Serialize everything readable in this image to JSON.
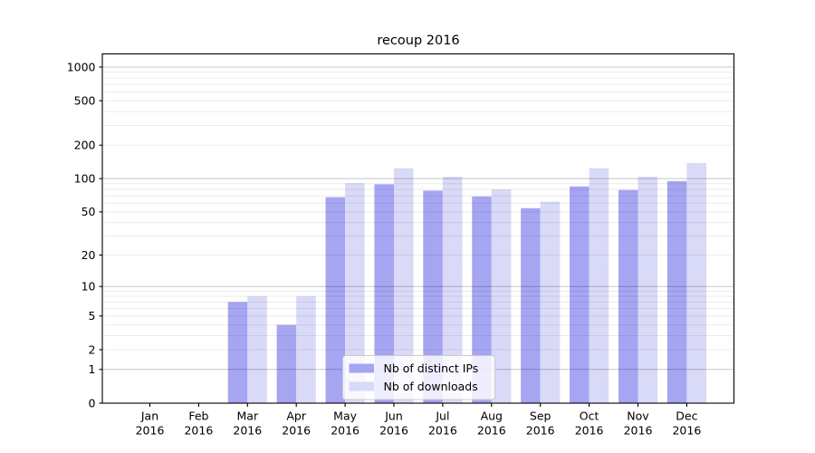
{
  "title": "recoup 2016",
  "chart_data": {
    "type": "bar",
    "title": "recoup 2016",
    "categories": [
      "Jan 2016",
      "Feb 2016",
      "Mar 2016",
      "Apr 2016",
      "May 2016",
      "Jun 2016",
      "Jul 2016",
      "Aug 2016",
      "Sep 2016",
      "Oct 2016",
      "Nov 2016",
      "Dec 2016"
    ],
    "series": [
      {
        "name": "Nb of distinct IPs",
        "color": "#a5a5f2",
        "values": [
          0,
          0,
          7,
          4,
          68,
          89,
          78,
          69,
          54,
          85,
          79,
          95
        ]
      },
      {
        "name": "Nb of downloads",
        "color": "#d9d9f8",
        "values": [
          0,
          0,
          8,
          8,
          91,
          124,
          104,
          80,
          62,
          124,
          104,
          138
        ]
      }
    ],
    "yscale": "log10(1+x)",
    "y_tick_labels": [
      "0",
      "1",
      "2",
      "5",
      "10",
      "20",
      "50",
      "100",
      "200",
      "500",
      "1000"
    ],
    "y_tick_values": [
      0,
      1,
      2,
      5,
      10,
      20,
      50,
      100,
      200,
      500,
      1000
    ],
    "ylim": [
      0,
      1300
    ],
    "grid": "horizontal major+minor, drawn over bars",
    "legend_position": "inside bottom-center"
  },
  "legend": {
    "items": [
      {
        "label": "Nb of distinct IPs",
        "color": "#a5a5f2"
      },
      {
        "label": "Nb of downloads",
        "color": "#d9d9f8"
      }
    ]
  },
  "colors": {
    "background": "#ffffff",
    "axis": "#000000",
    "tick_text": "#000000",
    "grid_major": "rgba(0,0,0,0.22)",
    "grid_minor": "rgba(0,0,0,0.08)",
    "legend_border": "#cccccc",
    "legend_fill": "rgba(255,255,255,0.8)"
  }
}
